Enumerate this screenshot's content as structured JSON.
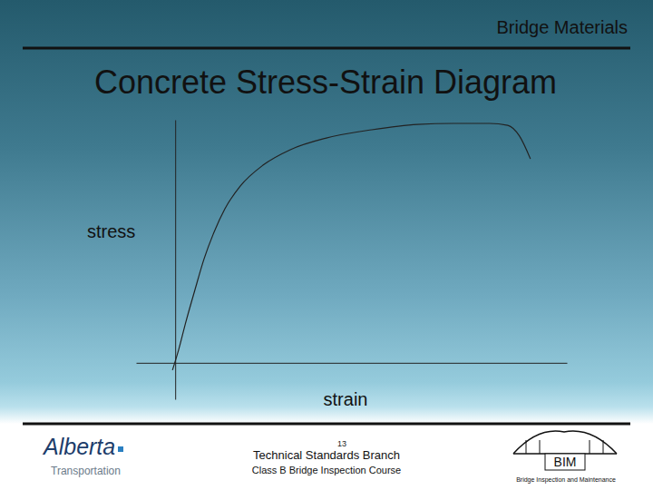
{
  "slide": {
    "header": "Bridge Materials",
    "footer_branch": "Technical Standards Branch",
    "page_number": "13",
    "footer_course": "Class B Bridge Inspection Course",
    "logo_left_name": "Alberta",
    "logo_left_sub": "Transportation",
    "logo_right_name": "BIM",
    "logo_right_sub": "Bridge Inspection and Maintenance"
  },
  "chart_data": {
    "type": "line",
    "title": "Concrete Stress-Strain Diagram",
    "x_label": "strain",
    "y_label": "stress",
    "x": [
      -0.07,
      0.09,
      0.27,
      0.5,
      0.74,
      0.97,
      1.27,
      1.66,
      2.24,
      2.94,
      3.86,
      5.02,
      6.18,
      7.1,
      8.03,
      8.49,
      8.79,
      9.07
    ],
    "values": [
      -0.3,
      0.55,
      1.67,
      2.98,
      4.29,
      5.29,
      6.34,
      7.27,
      8.13,
      8.77,
      9.25,
      9.59,
      9.81,
      9.85,
      9.85,
      9.77,
      9.33,
      8.39
    ],
    "color": "#222222",
    "xlim": [
      -1,
      10
    ],
    "ylim": [
      -1.5,
      10
    ],
    "xticks": [],
    "yticks": [],
    "tick_labels": false,
    "grid": false
  }
}
